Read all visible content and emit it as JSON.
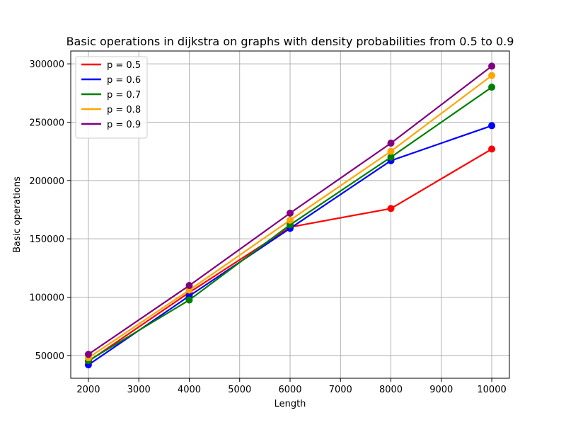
{
  "chart_data": {
    "type": "line",
    "title": "Basic operations in dijkstra on graphs with density probabilities from  0.5 to 0.9",
    "xlabel": "Length",
    "ylabel": "Basic operations",
    "x": [
      2000,
      4000,
      6000,
      8000,
      10000
    ],
    "xlim": [
      1650,
      10350
    ],
    "ylim": [
      30500,
      311000
    ],
    "xticks": [
      2000,
      3000,
      4000,
      5000,
      6000,
      7000,
      8000,
      9000,
      10000
    ],
    "yticks": [
      50000,
      100000,
      150000,
      200000,
      250000,
      300000
    ],
    "grid": true,
    "legend_position": "top-left",
    "series": [
      {
        "name": "p = 0.5",
        "color": "#ff0000",
        "values": [
          45000,
          104000,
          160000,
          176000,
          227000
        ]
      },
      {
        "name": "p = 0.6",
        "color": "#0000ff",
        "values": [
          42000,
          101000,
          159000,
          217000,
          247000
        ]
      },
      {
        "name": "p = 0.7",
        "color": "#008000",
        "values": [
          45500,
          97500,
          162000,
          220000,
          280000
        ]
      },
      {
        "name": "p = 0.8",
        "color": "#ffa500",
        "values": [
          48000,
          106000,
          166000,
          225000,
          290000
        ]
      },
      {
        "name": "p = 0.9",
        "color": "#800080",
        "values": [
          51000,
          110000,
          172000,
          232000,
          298000
        ]
      }
    ]
  }
}
